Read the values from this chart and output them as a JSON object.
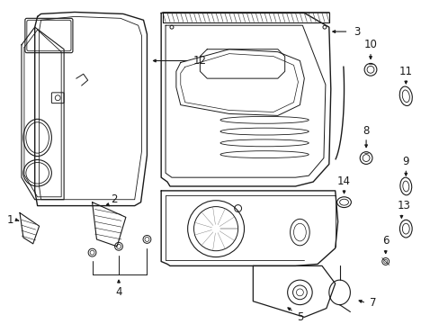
{
  "background_color": "#ffffff",
  "line_color": "#1a1a1a",
  "fig_width": 4.89,
  "fig_height": 3.6,
  "dpi": 100,
  "font_size": 8.5
}
